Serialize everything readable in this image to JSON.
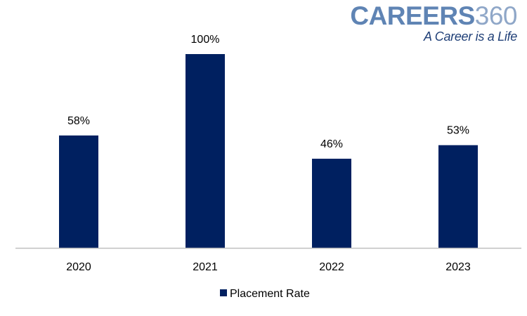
{
  "logo": {
    "word": "CAREERS",
    "number": "360",
    "tagline": "A Career is a Life"
  },
  "colors": {
    "bar": "#002060",
    "axis": "#bfbfbf",
    "text": "#000000"
  },
  "chart_data": {
    "type": "bar",
    "categories": [
      "2020",
      "2021",
      "2022",
      "2023"
    ],
    "series": [
      {
        "name": "Placement Rate",
        "values": [
          58,
          100,
          46,
          53
        ]
      }
    ],
    "data_labels": [
      "58%",
      "100%",
      "46%",
      "53%"
    ],
    "ylim": [
      0,
      100
    ],
    "grid": false,
    "legend_position": "bottom"
  }
}
